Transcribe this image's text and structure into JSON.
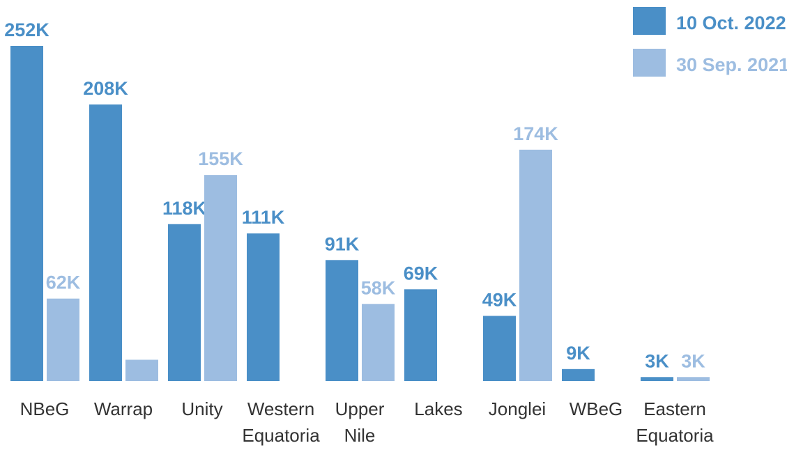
{
  "chart_data": {
    "type": "bar",
    "categories": [
      "NBeG",
      "Warrap",
      "Unity",
      "Western Equatoria",
      "Upper Nile",
      "Lakes",
      "Jonglei",
      "WBeG",
      "Eastern Equatoria"
    ],
    "series": [
      {
        "name": "10 Oct. 2022",
        "color": "#4a8fc7",
        "values": [
          252000,
          208000,
          118000,
          111000,
          91000,
          69000,
          49000,
          9000,
          3000
        ],
        "value_labels": [
          "252K",
          "208K",
          "118K",
          "111K",
          "91K",
          "69K",
          "49K",
          "9K",
          "3K"
        ]
      },
      {
        "name": "30 Sep. 2021",
        "color": "#9dbde1",
        "values": [
          62000,
          16000,
          155000,
          null,
          58000,
          null,
          174000,
          null,
          3000
        ],
        "value_labels": [
          "62K",
          null,
          "155K",
          null,
          "58K",
          null,
          "174K",
          null,
          "3K"
        ]
      }
    ],
    "legend": "top-right"
  }
}
